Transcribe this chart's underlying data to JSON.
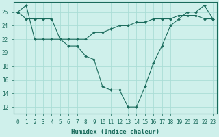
{
  "line1_x": [
    0,
    1,
    2,
    3,
    4,
    5,
    6,
    7,
    8,
    9,
    10,
    11,
    12,
    13,
    14,
    15,
    16,
    17,
    18,
    19,
    20,
    21,
    22,
    23
  ],
  "line1_y": [
    26,
    25,
    25,
    25,
    25,
    22,
    22,
    22,
    22,
    23,
    23,
    23.5,
    24,
    24,
    24.5,
    24.5,
    25,
    25,
    25,
    25.5,
    25.5,
    25.5,
    25,
    25
  ],
  "line2_x": [
    0,
    1,
    2,
    3,
    4,
    5,
    6,
    7,
    8,
    9,
    10,
    11,
    12,
    13,
    14,
    15,
    16,
    17,
    18,
    19,
    20,
    21,
    22,
    23
  ],
  "line2_y": [
    26,
    27,
    22,
    22,
    22,
    22,
    21,
    21,
    19.5,
    19,
    15,
    14.5,
    14.5,
    12,
    12,
    15,
    18.5,
    21,
    24,
    25,
    26,
    26,
    27,
    25
  ],
  "color": "#1a6b5c",
  "bg_color": "#cff0eb",
  "grid_color": "#aaddd6",
  "xlabel": "Humidex (Indice chaleur)",
  "xlim": [
    -0.5,
    23.5
  ],
  "ylim": [
    11,
    27.5
  ],
  "yticks": [
    12,
    14,
    16,
    18,
    20,
    22,
    24,
    26
  ],
  "xticks": [
    0,
    1,
    2,
    3,
    4,
    5,
    6,
    7,
    8,
    9,
    10,
    11,
    12,
    13,
    14,
    15,
    16,
    17,
    18,
    19,
    20,
    21,
    22,
    23
  ],
  "xlabel_fontsize": 6.5,
  "tick_fontsize": 5.5
}
